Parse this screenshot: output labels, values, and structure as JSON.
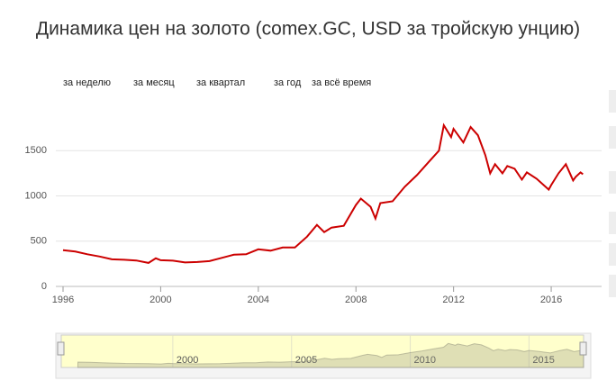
{
  "chart_data": {
    "type": "line",
    "title": "Динамика цен на золото (comex.GC, USD за тройскую унцию)",
    "range_buttons": [
      "за неделю",
      "за месяц",
      "за квартал",
      "за год",
      "за всё время"
    ],
    "xlim": [
      1996,
      2017.4
    ],
    "xticks": [
      1996,
      2000,
      2004,
      2008,
      2012,
      2016
    ],
    "ylim": [
      0,
      2000
    ],
    "yticks": [
      0,
      500,
      1000,
      1500
    ],
    "grid": true,
    "series": [
      {
        "color": "#cc0000",
        "x": [
          1996,
          1996.5,
          1997,
          1997.5,
          1998,
          1998.5,
          1999,
          1999.5,
          1999.8,
          2000,
          2000.5,
          2001,
          2001.5,
          2002,
          2002.5,
          2003,
          2003.5,
          2004,
          2004.5,
          2005,
          2005.5,
          2006,
          2006.4,
          2006.7,
          2007,
          2007.5,
          2008,
          2008.2,
          2008.6,
          2008.8,
          2009,
          2009.5,
          2010,
          2010.5,
          2011,
          2011.4,
          2011.6,
          2011.9,
          2012,
          2012.4,
          2012.7,
          2013,
          2013.3,
          2013.5,
          2013.7,
          2014,
          2014.2,
          2014.5,
          2014.8,
          2015,
          2015.4,
          2015.9,
          2016,
          2016.3,
          2016.6,
          2016.9,
          2017,
          2017.2,
          2017.3
        ],
        "values": [
          400,
          385,
          355,
          330,
          300,
          295,
          287,
          260,
          310,
          290,
          285,
          265,
          270,
          280,
          315,
          350,
          355,
          410,
          395,
          430,
          430,
          550,
          680,
          600,
          650,
          670,
          900,
          970,
          880,
          750,
          920,
          940,
          1100,
          1230,
          1380,
          1500,
          1780,
          1650,
          1740,
          1590,
          1760,
          1670,
          1450,
          1250,
          1350,
          1250,
          1330,
          1300,
          1180,
          1260,
          1190,
          1070,
          1120,
          1250,
          1350,
          1170,
          1210,
          1260,
          1240
        ]
      }
    ],
    "navigator": {
      "xlim": [
        1995.3,
        2017.3
      ],
      "xticks": [
        2000,
        2005,
        2010,
        2015
      ]
    }
  }
}
